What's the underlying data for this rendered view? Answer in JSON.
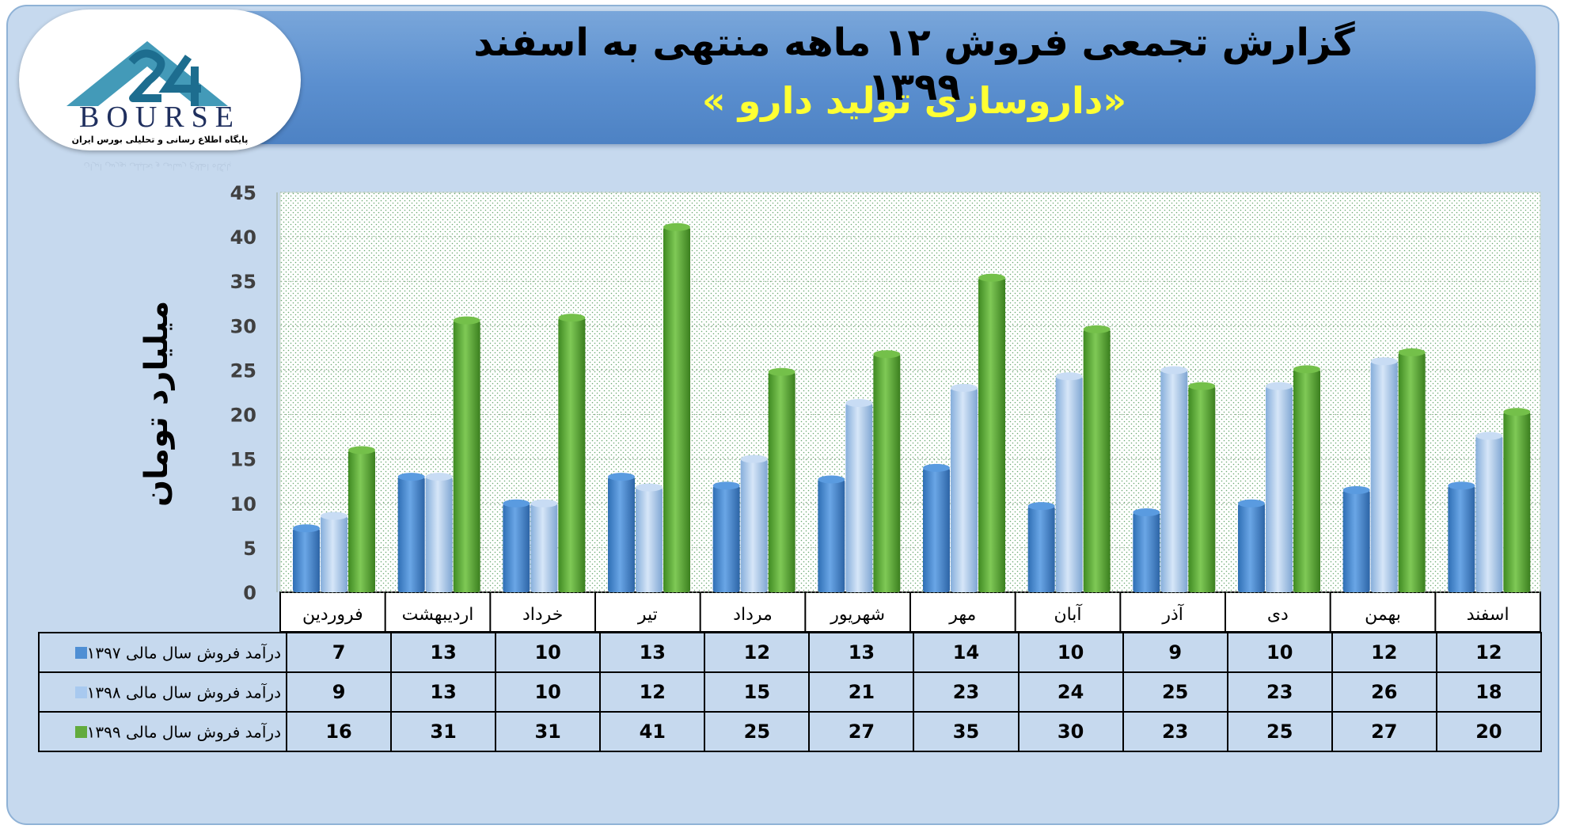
{
  "title": {
    "main": "گزارش تجمعی فروش ۱۲ ماهه منتهی به اسفند ۱۳۹۹",
    "sub": "«داروسازی تولید دارو »"
  },
  "logo": {
    "text": "BOURSE",
    "tagline": "پایگاه اطلاع رسانی و تحلیلی بورس ایران"
  },
  "colors": {
    "s1397": "#4f8fd4",
    "s1398": "#a8c9ef",
    "s1399": "#62ab3d"
  },
  "chart_data": {
    "type": "bar",
    "ylabel": "میلیارد تومان",
    "ylim": [
      0,
      45
    ],
    "yticks": [
      0,
      5,
      10,
      15,
      20,
      25,
      30,
      35,
      40,
      45
    ],
    "grid": true,
    "legend": "data-table",
    "categories": [
      "فروردین",
      "اردیبهشت",
      "خرداد",
      "تیر",
      "مرداد",
      "شهریور",
      "مهر",
      "آبان",
      "آذر",
      "دی",
      "بهمن",
      "اسفند"
    ],
    "series": [
      {
        "name": "درآمد فروش سال مالی ۱۳۹۷",
        "values": [
          7,
          13,
          10,
          13,
          12,
          13,
          14,
          10,
          9,
          10,
          12,
          12
        ],
        "bar_values": [
          7.2,
          13,
          10,
          13,
          12,
          12.7,
          14,
          9.7,
          9,
          10,
          11.5,
          12
        ]
      },
      {
        "name": "درآمد فروش سال مالی ۱۳۹۸",
        "values": [
          9,
          13,
          10,
          12,
          15,
          21,
          23,
          24,
          25,
          23,
          26,
          18
        ],
        "bar_values": [
          8.6,
          13,
          10,
          11.8,
          15,
          21.3,
          23,
          24.3,
          25,
          23.2,
          26,
          17.6
        ]
      },
      {
        "name": "درآمد فروش سال مالی ۱۳۹۹",
        "values": [
          16,
          31,
          31,
          41,
          25,
          27,
          35,
          30,
          23,
          25,
          27,
          20
        ],
        "bar_values": [
          16,
          30.6,
          30.9,
          41.1,
          24.8,
          26.8,
          35.4,
          29.6,
          23.2,
          25.1,
          27,
          20.3
        ]
      }
    ]
  }
}
